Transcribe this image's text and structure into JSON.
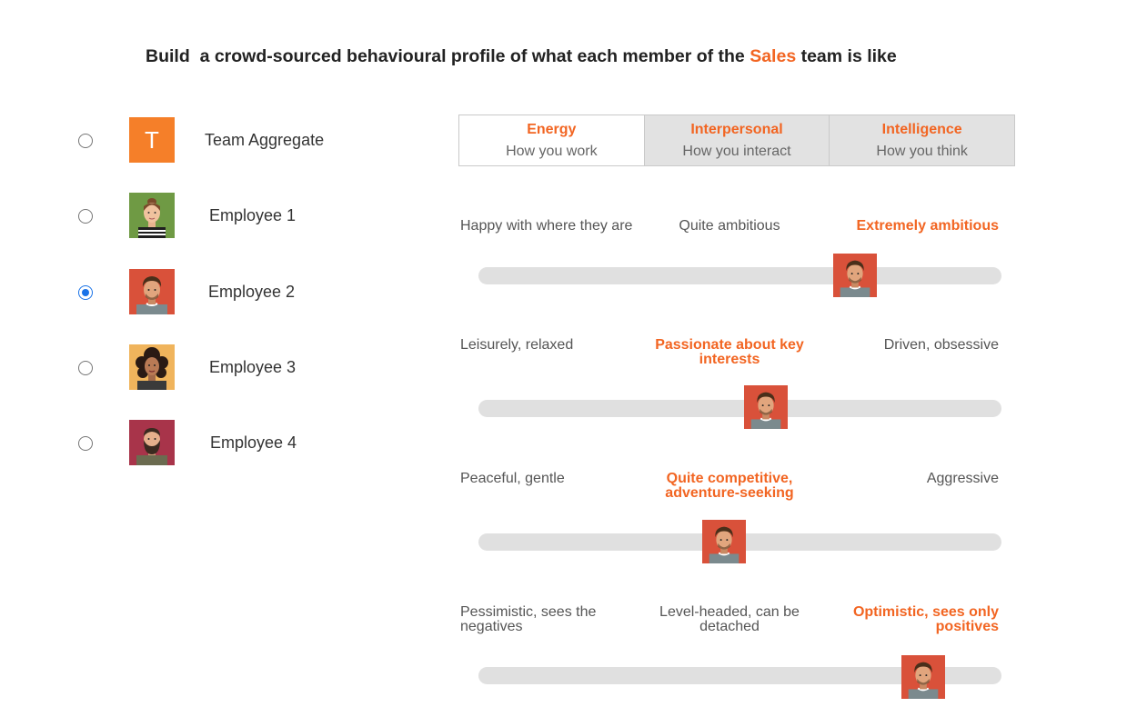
{
  "header": {
    "title_prefix": "Build  a crowd-sourced behavioural profile of what each member of the ",
    "team": "Sales",
    "title_suffix": " team is like",
    "accent_color": "#f26522"
  },
  "members": [
    {
      "label": "Team Aggregate",
      "tile_letter": "T",
      "selected": false,
      "avatar": "team-aggregate-tile"
    },
    {
      "label": "Employee 1",
      "selected": false,
      "avatar": "woman-avatar-green"
    },
    {
      "label": "Employee 2",
      "selected": true,
      "avatar": "man-avatar-red"
    },
    {
      "label": "Employee 3",
      "selected": false,
      "avatar": "woman-curly-avatar-yellow"
    },
    {
      "label": "Employee 4",
      "selected": false,
      "avatar": "bearded-man-avatar-maroon"
    }
  ],
  "tabs": [
    {
      "label": "Energy",
      "sub": "How you work",
      "active": true
    },
    {
      "label": "Interpersonal",
      "sub": "How you interact",
      "active": false
    },
    {
      "label": "Intelligence",
      "sub": "How you think",
      "active": false
    }
  ],
  "traits": [
    {
      "left": "Happy with where they are",
      "mid": "Quite ambitious",
      "right": "Extremely ambitious",
      "selected": "right",
      "value": 0.72
    },
    {
      "left": "Leisurely, relaxed",
      "mid": "Passionate about key interests",
      "right": "Driven, obsessive",
      "selected": "mid",
      "value": 0.55
    },
    {
      "left": "Peaceful, gentle",
      "mid": "Quite competitive, adventure-seeking",
      "right": "Aggressive",
      "selected": "mid",
      "value": 0.47
    },
    {
      "left": "Pessimistic, sees the negatives",
      "mid": "Level-headed, can be detached",
      "right": "Optimistic, sees only positives",
      "selected": "right",
      "value": 0.85
    }
  ]
}
